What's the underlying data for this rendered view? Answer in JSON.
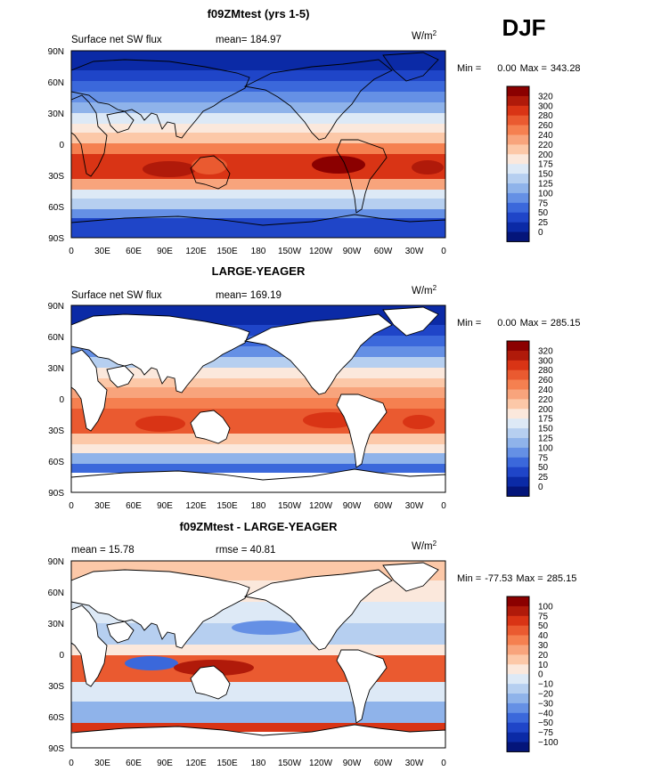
{
  "season": "DJF",
  "units_text": "W/m",
  "units_sup": "2",
  "lat_ticks": [
    "90N",
    "60N",
    "30N",
    "0",
    "30S",
    "60S",
    "90S"
  ],
  "lon_ticks": [
    "0",
    "30E",
    "60E",
    "90E",
    "120E",
    "150E",
    "180",
    "150W",
    "120W",
    "90W",
    "60W",
    "30W",
    "0"
  ],
  "chart_data": [
    {
      "type": "heatmap",
      "title": "f09ZMtest (yrs 1-5)",
      "variable_label": "Surface net SW flux",
      "stat1_label": "mean=",
      "stat1_value": "184.97",
      "stat2_label": "",
      "stat2_value": "",
      "min_label": "Min =",
      "min_value": "0.00",
      "max_label": "Max =",
      "max_value": "343.28",
      "colorbar_levels": [
        "320",
        "300",
        "280",
        "260",
        "240",
        "220",
        "200",
        "175",
        "150",
        "125",
        "100",
        "75",
        "50",
        "25",
        "0"
      ],
      "colorbar_colors": [
        "#8b0000",
        "#b01a0a",
        "#d93415",
        "#ea5a30",
        "#f58050",
        "#f8a47c",
        "#fcc8a8",
        "#fbe8dc",
        "#dde9f6",
        "#b6cff0",
        "#8fb3ea",
        "#6590e5",
        "#3b68db",
        "#1f45c8",
        "#0b2aa6",
        "#04157a"
      ],
      "description": "Shading shows land and ocean; strongest flux in Southern Hemisphere summer subtropics."
    },
    {
      "type": "heatmap",
      "title": "LARGE-YEAGER",
      "variable_label": "Surface net SW flux",
      "stat1_label": "mean=",
      "stat1_value": "169.19",
      "stat2_label": "",
      "stat2_value": "",
      "min_label": "Min =",
      "min_value": "0.00",
      "max_label": "Max =",
      "max_value": "285.15",
      "colorbar_levels": [
        "320",
        "300",
        "280",
        "260",
        "240",
        "220",
        "200",
        "175",
        "150",
        "125",
        "100",
        "75",
        "50",
        "25",
        "0"
      ],
      "colorbar_colors": [
        "#8b0000",
        "#b01a0a",
        "#d93415",
        "#ea5a30",
        "#f58050",
        "#f8a47c",
        "#fcc8a8",
        "#fbe8dc",
        "#dde9f6",
        "#b6cff0",
        "#8fb3ea",
        "#6590e5",
        "#3b68db",
        "#1f45c8",
        "#0b2aa6",
        "#04157a"
      ],
      "description": "Ocean-only observational field; land masked white."
    },
    {
      "type": "heatmap",
      "title": "f09ZMtest - LARGE-YEAGER",
      "variable_label": "",
      "stat1_label": "mean =",
      "stat1_value": "15.78",
      "stat2_label": "rmse =",
      "stat2_value": "40.81",
      "min_label": "Min =",
      "min_value": "-77.53",
      "max_label": "Max =",
      "max_value": "285.15",
      "colorbar_levels": [
        "100",
        "75",
        "50",
        "40",
        "30",
        "20",
        "10",
        "0",
        "−10",
        "−20",
        "−30",
        "−40",
        "−50",
        "−75",
        "−100"
      ],
      "colorbar_colors": [
        "#8b0000",
        "#b01a0a",
        "#d93415",
        "#ea5a30",
        "#f58050",
        "#f8a47c",
        "#fcc8a8",
        "#fbe8dc",
        "#dde9f6",
        "#b6cff0",
        "#8fb3ea",
        "#6590e5",
        "#3b68db",
        "#1f45c8",
        "#0b2aa6",
        "#04157a"
      ],
      "description": "Model minus observations over ocean; land masked white."
    }
  ]
}
